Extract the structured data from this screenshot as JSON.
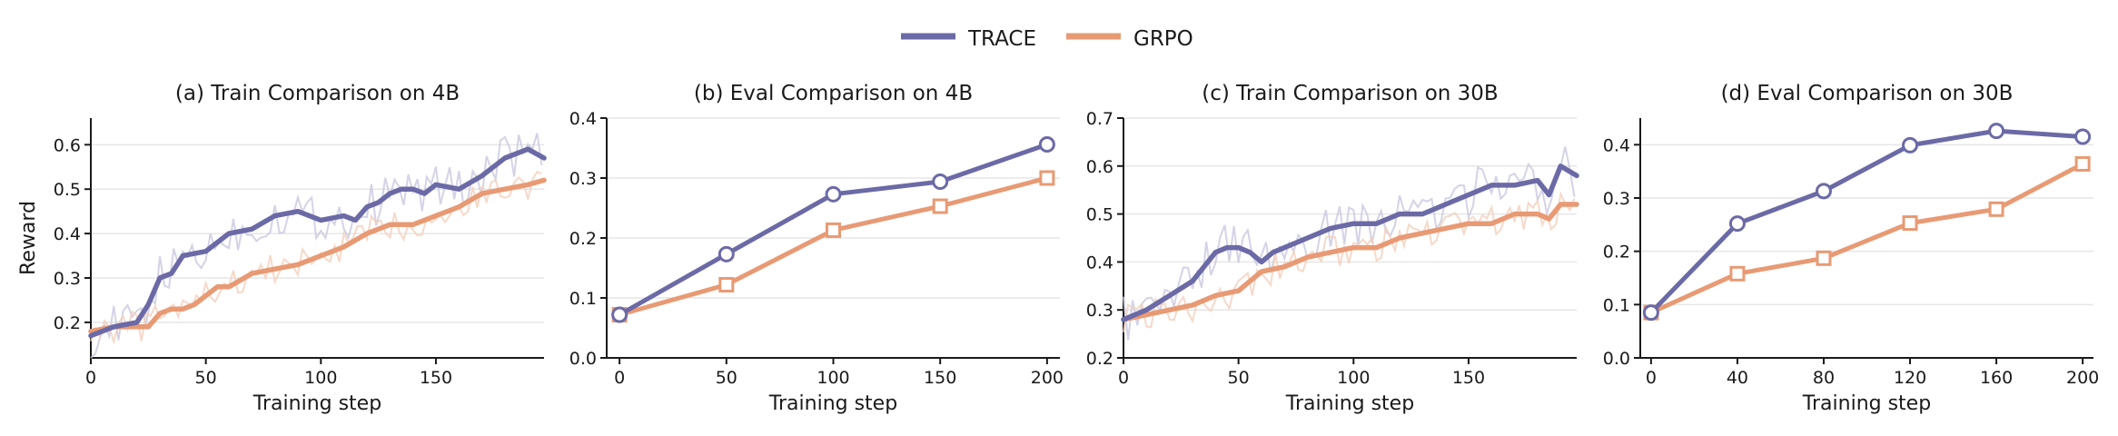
{
  "legend": {
    "items": [
      {
        "label": "TRACE",
        "color": "#6b6aa6"
      },
      {
        "label": "GRPO",
        "color": "#e89a74"
      }
    ],
    "placement": "top-center"
  },
  "colors": {
    "trace": "#6b6aa6",
    "grpo": "#e89a74",
    "raw_trace": "#c9c8e0",
    "raw_grpo": "#f3cfbd",
    "grid": "#e6e6e6",
    "axis": "#1a1a1a"
  },
  "chart_data": [
    {
      "type": "line",
      "title": "(a) Train Comparison on 4B",
      "xlabel": "Training step",
      "ylabel": "Reward",
      "xlim": [
        0,
        197
      ],
      "ylim": [
        0.12,
        0.66
      ],
      "xticks": [
        0,
        50,
        100,
        150
      ],
      "yticks": [
        0.2,
        0.3,
        0.4,
        0.5,
        0.6
      ],
      "grid": "horizontal",
      "markers": false,
      "series": [
        {
          "name": "TRACE",
          "x": [
            0,
            10,
            20,
            25,
            30,
            35,
            40,
            50,
            60,
            70,
            80,
            90,
            100,
            110,
            115,
            120,
            125,
            130,
            135,
            140,
            145,
            150,
            160,
            170,
            180,
            190,
            197
          ],
          "y": [
            0.17,
            0.19,
            0.2,
            0.24,
            0.3,
            0.31,
            0.35,
            0.36,
            0.4,
            0.41,
            0.44,
            0.45,
            0.43,
            0.44,
            0.43,
            0.46,
            0.47,
            0.49,
            0.5,
            0.5,
            0.49,
            0.51,
            0.5,
            0.53,
            0.57,
            0.59,
            0.57
          ]
        },
        {
          "name": "GRPO",
          "x": [
            0,
            10,
            20,
            25,
            30,
            35,
            40,
            45,
            50,
            55,
            60,
            70,
            80,
            90,
            100,
            110,
            120,
            130,
            140,
            150,
            160,
            170,
            180,
            190,
            197
          ],
          "y": [
            0.18,
            0.19,
            0.19,
            0.19,
            0.22,
            0.23,
            0.23,
            0.24,
            0.26,
            0.28,
            0.28,
            0.31,
            0.32,
            0.33,
            0.35,
            0.37,
            0.4,
            0.42,
            0.42,
            0.44,
            0.46,
            0.49,
            0.5,
            0.51,
            0.52
          ]
        }
      ]
    },
    {
      "type": "line",
      "title": "(b) Eval Comparison on 4B",
      "xlabel": "Training step",
      "ylabel": "",
      "xlim": [
        -6,
        206
      ],
      "ylim": [
        0.0,
        0.4
      ],
      "xticks": [
        0,
        50,
        100,
        150,
        200
      ],
      "yticks": [
        0.0,
        0.1,
        0.2,
        0.3,
        0.4
      ],
      "grid": "horizontal",
      "markers": true,
      "series": [
        {
          "name": "TRACE",
          "marker": "circle",
          "x": [
            0,
            50,
            100,
            150,
            200
          ],
          "y": [
            0.072,
            0.173,
            0.273,
            0.294,
            0.356
          ]
        },
        {
          "name": "GRPO",
          "marker": "square",
          "x": [
            0,
            50,
            100,
            150,
            200
          ],
          "y": [
            0.072,
            0.122,
            0.213,
            0.253,
            0.3
          ]
        }
      ]
    },
    {
      "type": "line",
      "title": "(c) Train Comparison on 30B",
      "xlabel": "Training step",
      "ylabel": "",
      "xlim": [
        0,
        197
      ],
      "ylim": [
        0.2,
        0.7
      ],
      "xticks": [
        0,
        50,
        100,
        150
      ],
      "yticks": [
        0.2,
        0.3,
        0.4,
        0.5,
        0.6,
        0.7
      ],
      "grid": "horizontal",
      "markers": false,
      "series": [
        {
          "name": "TRACE",
          "x": [
            0,
            10,
            20,
            30,
            40,
            45,
            50,
            55,
            60,
            65,
            70,
            80,
            90,
            100,
            110,
            120,
            130,
            140,
            150,
            160,
            170,
            180,
            185,
            190,
            197
          ],
          "y": [
            0.28,
            0.3,
            0.33,
            0.36,
            0.42,
            0.43,
            0.43,
            0.42,
            0.4,
            0.42,
            0.43,
            0.45,
            0.47,
            0.48,
            0.48,
            0.5,
            0.5,
            0.52,
            0.54,
            0.56,
            0.56,
            0.57,
            0.54,
            0.6,
            0.58
          ]
        },
        {
          "name": "GRPO",
          "x": [
            0,
            10,
            20,
            30,
            40,
            50,
            55,
            60,
            70,
            80,
            90,
            100,
            110,
            120,
            130,
            140,
            150,
            160,
            170,
            180,
            185,
            190,
            197
          ],
          "y": [
            0.28,
            0.29,
            0.3,
            0.31,
            0.33,
            0.34,
            0.36,
            0.38,
            0.39,
            0.41,
            0.42,
            0.43,
            0.43,
            0.45,
            0.46,
            0.47,
            0.48,
            0.48,
            0.5,
            0.5,
            0.49,
            0.52,
            0.52
          ]
        }
      ]
    },
    {
      "type": "line",
      "title": "(d) Eval Comparison on 30B",
      "xlabel": "Training step",
      "ylabel": "",
      "xlim": [
        -5,
        205
      ],
      "ylim": [
        0.0,
        0.45
      ],
      "xticks": [
        0,
        40,
        80,
        120,
        160,
        200
      ],
      "yticks": [
        0.0,
        0.1,
        0.2,
        0.3,
        0.4
      ],
      "grid": "horizontal",
      "markers": true,
      "series": [
        {
          "name": "TRACE",
          "marker": "circle",
          "x": [
            0,
            40,
            80,
            120,
            160,
            200
          ],
          "y": [
            0.085,
            0.252,
            0.313,
            0.399,
            0.426,
            0.415
          ]
        },
        {
          "name": "GRPO",
          "marker": "square",
          "x": [
            0,
            40,
            80,
            120,
            160,
            200
          ],
          "y": [
            0.085,
            0.158,
            0.187,
            0.253,
            0.279,
            0.364
          ]
        }
      ]
    }
  ]
}
